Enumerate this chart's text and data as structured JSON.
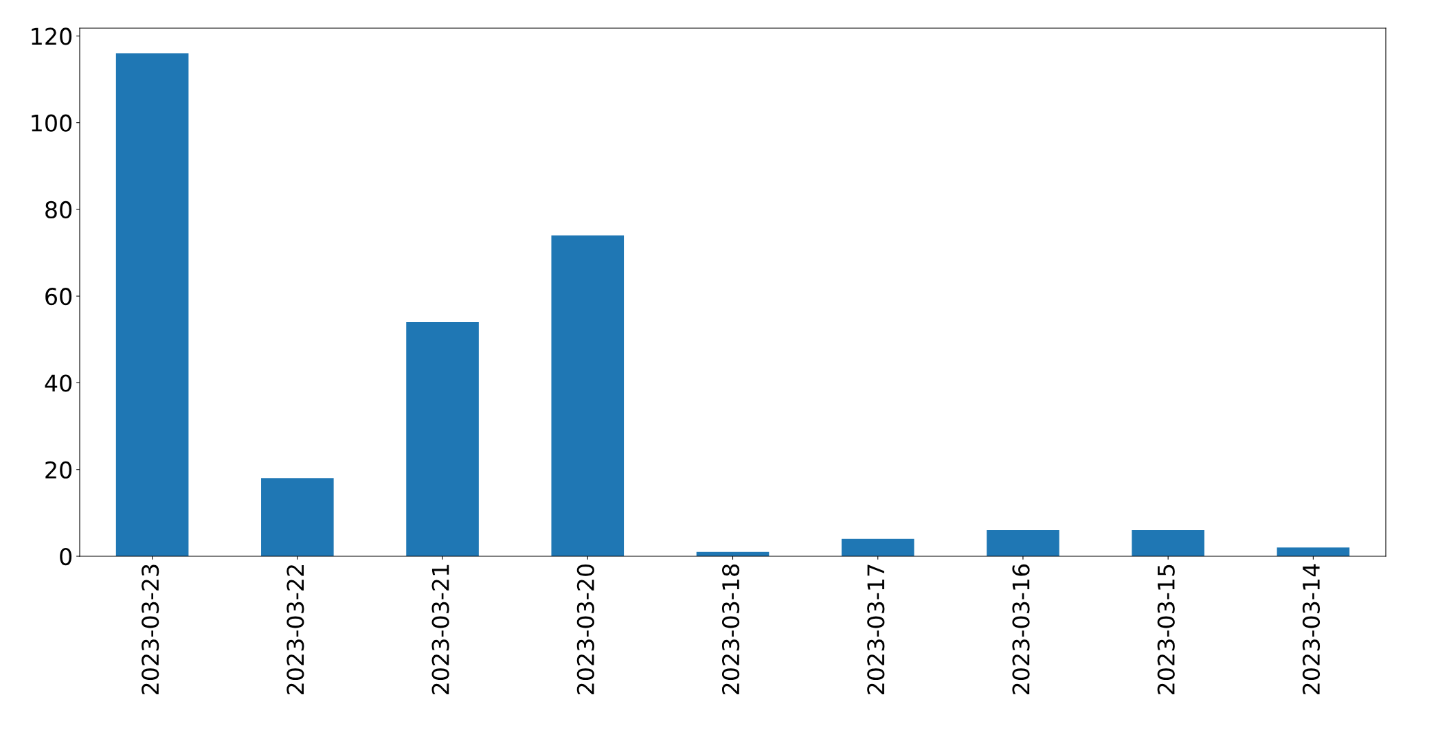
{
  "chart_data": {
    "type": "bar",
    "categories": [
      "2023-03-23",
      "2023-03-22",
      "2023-03-21",
      "2023-03-20",
      "2023-03-18",
      "2023-03-17",
      "2023-03-16",
      "2023-03-15",
      "2023-03-14"
    ],
    "values": [
      116,
      18,
      54,
      74,
      1,
      4,
      6,
      6,
      2
    ],
    "color": "#1f77b4",
    "ylim": [
      0,
      121.8
    ],
    "yticks": [
      0,
      20,
      40,
      60,
      80,
      100,
      120
    ],
    "grid": false
  }
}
